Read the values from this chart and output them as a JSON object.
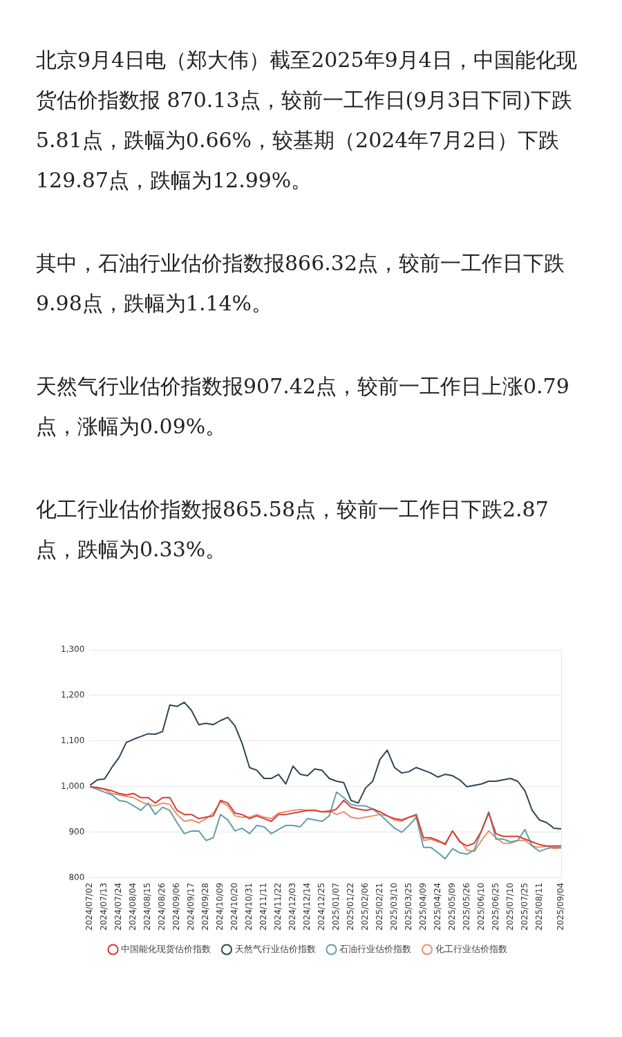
{
  "chart_data": {
    "type": "line",
    "annotations": [
      "北京9月4日电（郑大伟）截至2025年9月4日，中国能化现货估价指数报 870.13点，较前一工作日(9月3日下同)下跌5.81点，跌幅为0.66%，较基期（2024年7月2日）下跌129.87点，跌幅为12.99%。",
      "其中，石油行业估价指数报866.32点，较前一工作日下跌9.98点，跌幅为1.14%。",
      "天然气行业估价指数报907.42点，较前一工作日上涨0.79点，涨幅为0.09%。",
      "化工行业估价指数报865.58点，较前一工作日下跌2.87点，跌幅为0.33%。"
    ],
    "categories": [
      "2024/07/02",
      null,
      "2024/07/13",
      null,
      "2024/07/24",
      null,
      "2024/08/04",
      null,
      "2024/08/15",
      null,
      "2024/08/26",
      null,
      "2024/09/06",
      null,
      "2024/09/17",
      null,
      "2024/09/28",
      null,
      "2024/10/09",
      null,
      "2024/10/20",
      null,
      "2024/10/31",
      null,
      "2024/11/11",
      null,
      "2024/11/22",
      null,
      "2024/12/03",
      null,
      "2024/12/14",
      null,
      "2024/12/25",
      null,
      "2025/01/07",
      null,
      "2025/01/22",
      null,
      "2025/02/06",
      null,
      "2025/02/21",
      null,
      "2025/03/10",
      null,
      "2025/03/25",
      null,
      "2025/04/09",
      null,
      "2025/04/24",
      null,
      "2025/05/09",
      null,
      "2025/05/26",
      null,
      "2025/06/10",
      null,
      "2025/06/25",
      null,
      "2025/07/10",
      null,
      "2025/07/25",
      null,
      "2025/08/11",
      null,
      null,
      "2025/09/04"
    ],
    "series": [
      {
        "name": "中国能化现货估价指数",
        "color": "#d0403a",
        "values": [
          1000,
          998,
          995,
          991,
          985,
          982,
          985,
          976,
          976,
          964,
          976,
          976,
          948,
          939,
          939,
          930,
          933,
          936,
          970,
          964,
          942,
          939,
          930,
          936,
          930,
          924,
          939,
          939,
          942,
          945,
          948,
          948,
          945,
          945,
          951,
          970,
          955,
          951,
          948,
          951,
          945,
          936,
          930,
          927,
          933,
          939,
          888,
          888,
          882,
          873,
          903,
          879,
          870,
          876,
          903,
          942,
          897,
          891,
          891,
          891,
          885,
          879,
          873,
          870,
          870,
          870.13
        ]
      },
      {
        "name": "天然气行业估价指数",
        "color": "#2f4554",
        "values": [
          1003,
          1015,
          1017,
          1042,
          1064,
          1097,
          1104,
          1110,
          1116,
          1115,
          1121,
          1179,
          1176,
          1185,
          1167,
          1136,
          1139,
          1136,
          1145,
          1152,
          1133,
          1094,
          1042,
          1036,
          1018,
          1018,
          1027,
          1006,
          1045,
          1027,
          1024,
          1039,
          1036,
          1018,
          1012,
          1009,
          970,
          964,
          997,
          1012,
          1060,
          1080,
          1042,
          1030,
          1033,
          1042,
          1036,
          1030,
          1021,
          1027,
          1024,
          1015,
          1000,
          1003,
          1006,
          1012,
          1012,
          1015,
          1018,
          1012,
          991,
          948,
          927,
          921,
          909,
          907.42
        ]
      },
      {
        "name": "石油行业估价指数",
        "color": "#61a0a8",
        "values": [
          1000,
          994,
          988,
          982,
          970,
          967,
          958,
          948,
          964,
          939,
          955,
          948,
          921,
          897,
          903,
          903,
          882,
          888,
          939,
          927,
          903,
          909,
          897,
          915,
          912,
          897,
          906,
          915,
          915,
          912,
          930,
          927,
          924,
          936,
          988,
          976,
          961,
          958,
          958,
          951,
          939,
          924,
          909,
          900,
          915,
          933,
          867,
          867,
          855,
          842,
          864,
          855,
          852,
          861,
          903,
          945,
          885,
          885,
          879,
          882,
          906,
          870,
          858,
          864,
          867,
          866.32
        ]
      },
      {
        "name": "化工行业估价指数",
        "color": "#e8906a",
        "values": [
          1000,
          997,
          994,
          985,
          982,
          979,
          976,
          967,
          961,
          958,
          964,
          961,
          939,
          924,
          927,
          921,
          930,
          942,
          967,
          958,
          936,
          933,
          933,
          939,
          933,
          930,
          942,
          945,
          948,
          950,
          948,
          948,
          945,
          948,
          939,
          945,
          933,
          930,
          933,
          936,
          939,
          936,
          927,
          924,
          933,
          936,
          882,
          885,
          879,
          876,
          903,
          882,
          861,
          858,
          882,
          903,
          888,
          876,
          876,
          882,
          882,
          870,
          867,
          870,
          864,
          865.58
        ]
      }
    ],
    "ylim": [
      800,
      1300
    ],
    "yticks": [
      {
        "value": 800,
        "label": "800"
      },
      {
        "value": 900,
        "label": "900"
      },
      {
        "value": 1000,
        "label": "1,000"
      },
      {
        "value": 1100,
        "label": "1,100"
      },
      {
        "value": 1200,
        "label": "1,200"
      },
      {
        "value": 1300,
        "label": "1,300"
      }
    ],
    "grid": "y",
    "legend": "bottom",
    "marker": "none",
    "line_style": "solid"
  }
}
